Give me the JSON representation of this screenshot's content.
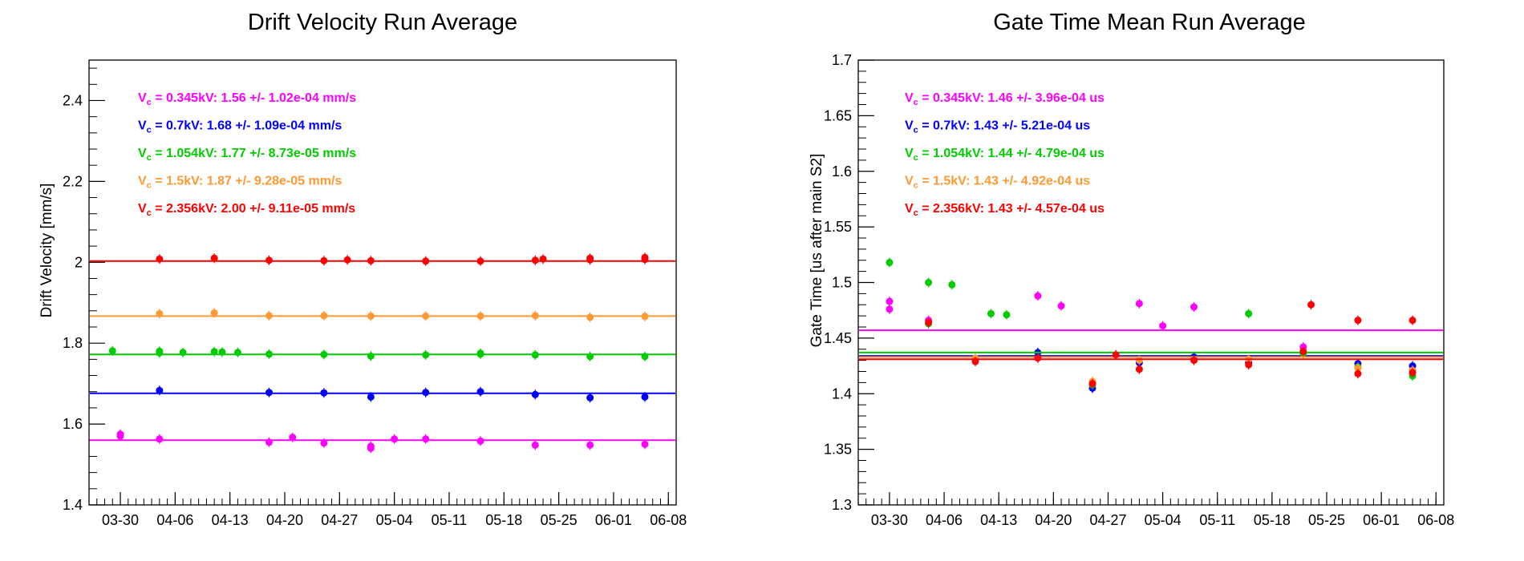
{
  "chart_data": [
    {
      "type": "scatter",
      "title": "Drift Velocity Run Average",
      "xlabel": "",
      "ylabel": "Drift Velocity [mm/s]",
      "xlim": [
        "2020-03-26",
        "2020-06-09"
      ],
      "ylim": [
        1.4,
        2.5
      ],
      "x_ticks": [
        "2020-03-30",
        "2020-04-06",
        "2020-04-13",
        "2020-04-20",
        "2020-04-27",
        "2020-05-04",
        "2020-05-11",
        "2020-05-18",
        "2020-05-25",
        "2020-06-01",
        "2020-06-08"
      ],
      "x_tick_labels": [
        "03-30",
        "04-06",
        "04-13",
        "04-20",
        "04-27",
        "05-04",
        "05-11",
        "05-18",
        "05-25",
        "06-01",
        "06-08"
      ],
      "y_ticks": [
        1.4,
        1.6,
        1.8,
        2,
        2.2,
        2.4
      ],
      "y_tick_labels": [
        "1.4",
        "1.6",
        "1.8",
        "2",
        "2.2",
        "2.4"
      ],
      "grid": false,
      "legend_position": "top-left",
      "series": [
        {
          "label": "V_c = 0.345kV: 1.56 +/- 1.02e-04 mm/s",
          "label_prefix": "V",
          "label_sub": "c",
          "label_rest": " = 0.345kV: 1.56 +/- 1.02e-04 mm/s",
          "color": "#ff00ff",
          "fit": 1.56,
          "points": [
            [
              "2020-03-30",
              1.575
            ],
            [
              "2020-03-30",
              1.57
            ],
            [
              "2020-04-04",
              1.563
            ],
            [
              "2020-04-18",
              1.555
            ],
            [
              "2020-04-21",
              1.567
            ],
            [
              "2020-04-25",
              1.553
            ],
            [
              "2020-05-01",
              1.545
            ],
            [
              "2020-05-01",
              1.54
            ],
            [
              "2020-05-04",
              1.563
            ],
            [
              "2020-05-08",
              1.563
            ],
            [
              "2020-05-15",
              1.558
            ],
            [
              "2020-05-22",
              1.548
            ],
            [
              "2020-05-29",
              1.548
            ],
            [
              "2020-06-05",
              1.55
            ]
          ]
        },
        {
          "label": "V_c = 0.7kV: 1.68 +/- 1.09e-04 mm/s",
          "label_prefix": "V",
          "label_sub": "c",
          "label_rest": " = 0.7kV: 1.68 +/- 1.09e-04 mm/s",
          "color": "#0000ff",
          "fit": 1.676,
          "points": [
            [
              "2020-04-04",
              1.683
            ],
            [
              "2020-04-18",
              1.678
            ],
            [
              "2020-04-25",
              1.677
            ],
            [
              "2020-05-01",
              1.667
            ],
            [
              "2020-05-08",
              1.678
            ],
            [
              "2020-05-15",
              1.68
            ],
            [
              "2020-05-22",
              1.673
            ],
            [
              "2020-05-29",
              1.665
            ],
            [
              "2020-06-05",
              1.667
            ]
          ]
        },
        {
          "label": "V_c = 1.054kV: 1.77 +/- 8.73e-05 mm/s",
          "label_prefix": "V",
          "label_sub": "c",
          "label_rest": " = 1.054kV: 1.77 +/- 8.73e-05 mm/s",
          "color": "#00cc00",
          "fit": 1.772,
          "points": [
            [
              "2020-03-29",
              1.781
            ],
            [
              "2020-04-04",
              1.78
            ],
            [
              "2020-04-04",
              1.776
            ],
            [
              "2020-04-07",
              1.777
            ],
            [
              "2020-04-11",
              1.779
            ],
            [
              "2020-04-12",
              1.778
            ],
            [
              "2020-04-14",
              1.777
            ],
            [
              "2020-04-18",
              1.773
            ],
            [
              "2020-04-25",
              1.772
            ],
            [
              "2020-05-01",
              1.768
            ],
            [
              "2020-05-08",
              1.771
            ],
            [
              "2020-05-15",
              1.775
            ],
            [
              "2020-05-15",
              1.773
            ],
            [
              "2020-05-22",
              1.771
            ],
            [
              "2020-05-29",
              1.767
            ],
            [
              "2020-06-05",
              1.767
            ]
          ]
        },
        {
          "label": "V_c = 1.5kV: 1.87 +/- 9.28e-05 mm/s",
          "label_prefix": "V",
          "label_sub": "c",
          "label_rest": " = 1.5kV: 1.87 +/- 9.28e-05 mm/s",
          "color": "#ff9933",
          "fit": 1.867,
          "points": [
            [
              "2020-04-04",
              1.873
            ],
            [
              "2020-04-11",
              1.875
            ],
            [
              "2020-04-18",
              1.868
            ],
            [
              "2020-04-25",
              1.868
            ],
            [
              "2020-05-01",
              1.867
            ],
            [
              "2020-05-08",
              1.867
            ],
            [
              "2020-05-15",
              1.867
            ],
            [
              "2020-05-22",
              1.868
            ],
            [
              "2020-05-29",
              1.864
            ],
            [
              "2020-06-05",
              1.866
            ]
          ]
        },
        {
          "label": "V_c = 2.356kV: 2.00 +/- 9.11e-05 mm/s",
          "label_prefix": "V",
          "label_sub": "c",
          "label_rest": " = 2.356kV: 2.00 +/- 9.11e-05 mm/s",
          "color": "#ff0000",
          "fit": 2.003,
          "points": [
            [
              "2020-04-04",
              2.008
            ],
            [
              "2020-04-11",
              2.01
            ],
            [
              "2020-04-18",
              2.005
            ],
            [
              "2020-04-25",
              2.004
            ],
            [
              "2020-04-28",
              2.006
            ],
            [
              "2020-05-01",
              2.004
            ],
            [
              "2020-05-08",
              2.003
            ],
            [
              "2020-05-15",
              2.003
            ],
            [
              "2020-05-22",
              2.005
            ],
            [
              "2020-05-23",
              2.008
            ],
            [
              "2020-05-29",
              2.01
            ],
            [
              "2020-05-29",
              2.006
            ],
            [
              "2020-06-05",
              2.012
            ],
            [
              "2020-06-05",
              2.007
            ]
          ]
        }
      ]
    },
    {
      "type": "scatter",
      "title": "Gate Time Mean Run Average",
      "xlabel": "",
      "ylabel": "Gate Time [us after main S2]",
      "xlim": [
        "2020-03-26",
        "2020-06-09"
      ],
      "ylim": [
        1.3,
        1.7
      ],
      "x_ticks": [
        "2020-03-30",
        "2020-04-06",
        "2020-04-13",
        "2020-04-20",
        "2020-04-27",
        "2020-05-04",
        "2020-05-11",
        "2020-05-18",
        "2020-05-25",
        "2020-06-01",
        "2020-06-08"
      ],
      "x_tick_labels": [
        "03-30",
        "04-06",
        "04-13",
        "04-20",
        "04-27",
        "05-04",
        "05-11",
        "05-18",
        "05-25",
        "06-01",
        "06-08"
      ],
      "y_ticks": [
        1.3,
        1.35,
        1.4,
        1.45,
        1.5,
        1.55,
        1.6,
        1.65,
        1.7
      ],
      "y_tick_labels": [
        "1.3",
        "1.35",
        "1.4",
        "1.45",
        "1.5",
        "1.55",
        "1.6",
        "1.65",
        "1.7"
      ],
      "grid": false,
      "legend_position": "top-left",
      "series": [
        {
          "label": "V_c = 0.345kV: 1.46 +/- 3.96e-04 us",
          "label_prefix": "V",
          "label_sub": "c",
          "label_rest": " = 0.345kV: 1.46 +/- 3.96e-04 us",
          "color": "#ff00ff",
          "fit": 1.457,
          "points": [
            [
              "2020-03-30",
              1.483
            ],
            [
              "2020-03-30",
              1.476
            ],
            [
              "2020-04-04",
              1.466
            ],
            [
              "2020-04-18",
              1.488
            ],
            [
              "2020-04-21",
              1.479
            ],
            [
              "2020-05-01",
              1.481
            ],
            [
              "2020-05-04",
              1.461
            ],
            [
              "2020-05-08",
              1.478
            ],
            [
              "2020-05-22",
              1.442
            ]
          ]
        },
        {
          "label": "V_c = 0.7kV: 1.43 +/- 5.21e-04 us",
          "label_prefix": "V",
          "label_sub": "c",
          "label_rest": " = 0.7kV: 1.43 +/- 5.21e-04 us",
          "color": "#0000ff",
          "fit": 1.434,
          "points": [
            [
              "2020-04-18",
              1.437
            ],
            [
              "2020-04-25",
              1.405
            ],
            [
              "2020-05-01",
              1.428
            ],
            [
              "2020-05-08",
              1.433
            ],
            [
              "2020-05-15",
              1.428
            ],
            [
              "2020-05-29",
              1.427
            ],
            [
              "2020-06-05",
              1.425
            ]
          ]
        },
        {
          "label": "V_c = 1.054kV: 1.44 +/- 4.79e-04 us",
          "label_prefix": "V",
          "label_sub": "c",
          "label_rest": " = 1.054kV: 1.44 +/- 4.79e-04 us",
          "color": "#00cc00",
          "fit": 1.437,
          "points": [
            [
              "2020-03-30",
              1.518
            ],
            [
              "2020-04-04",
              1.5
            ],
            [
              "2020-04-04",
              1.463
            ],
            [
              "2020-04-07",
              1.498
            ],
            [
              "2020-04-12",
              1.472
            ],
            [
              "2020-04-14",
              1.471
            ],
            [
              "2020-04-25",
              1.408
            ],
            [
              "2020-05-15",
              1.472
            ],
            [
              "2020-05-22",
              1.436
            ],
            [
              "2020-05-29",
              1.424
            ],
            [
              "2020-06-05",
              1.416
            ]
          ]
        },
        {
          "label": "V_c = 1.5kV: 1.43 +/- 4.92e-04 us",
          "label_prefix": "V",
          "label_sub": "c",
          "label_rest": " = 1.5kV: 1.43 +/- 4.92e-04 us",
          "color": "#ff9933",
          "fit": 1.433,
          "points": [
            [
              "2020-04-10",
              1.432
            ],
            [
              "2020-04-25",
              1.411
            ],
            [
              "2020-05-01",
              1.43
            ],
            [
              "2020-05-15",
              1.431
            ],
            [
              "2020-05-29",
              1.423
            ],
            [
              "2020-06-05",
              1.421
            ]
          ]
        },
        {
          "label": "V_c = 2.356kV: 1.43 +/- 4.57e-04 us",
          "label_prefix": "V",
          "label_sub": "c",
          "label_rest": " = 2.356kV: 1.43 +/- 4.57e-04 us",
          "color": "#ff0000",
          "fit": 1.431,
          "points": [
            [
              "2020-04-04",
              1.464
            ],
            [
              "2020-04-10",
              1.429
            ],
            [
              "2020-04-18",
              1.432
            ],
            [
              "2020-04-25",
              1.409
            ],
            [
              "2020-04-28",
              1.435
            ],
            [
              "2020-05-01",
              1.422
            ],
            [
              "2020-05-08",
              1.43
            ],
            [
              "2020-05-15",
              1.426
            ],
            [
              "2020-05-22",
              1.438
            ],
            [
              "2020-05-23",
              1.48
            ],
            [
              "2020-05-29",
              1.466
            ],
            [
              "2020-05-29",
              1.418
            ],
            [
              "2020-06-05",
              1.466
            ],
            [
              "2020-06-05",
              1.419
            ]
          ]
        }
      ]
    }
  ]
}
